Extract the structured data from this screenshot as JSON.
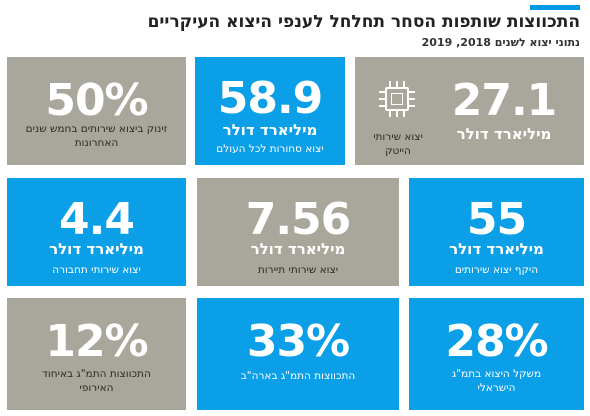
{
  "header": {
    "title": "התכווצות שותפות הסחר תחלחל לענפי היצוא העיקריים",
    "subtitle": "נתוני יצוא לשנים 2018, 2019"
  },
  "tiles": [
    {
      "number": "27.1",
      "unit": "מיליארד דולר",
      "desc": "",
      "side_label": "יצוא שירותי הייטק",
      "icon": "microchip-icon",
      "color": "gray"
    },
    {
      "number": "58.9",
      "unit": "מיליארד דולר",
      "desc": "יצוא סחורות לכל העולם",
      "color": "blue"
    },
    {
      "number": "50%",
      "unit": "",
      "desc": "זינוק ביצוא שירותים בחמש שנים האחרונות",
      "color": "gray"
    },
    {
      "number": "55",
      "unit": "מיליארד דולר",
      "desc": "היקף יצוא שירותים",
      "color": "blue"
    },
    {
      "number": "7.56",
      "unit": "מיליארד דולר",
      "desc": "יצוא שירותי תיירות",
      "color": "gray"
    },
    {
      "number": "4.4",
      "unit": "מיליארד דולר",
      "desc": "יצוא שירותי תחבורה",
      "color": "blue"
    },
    {
      "number": "28%",
      "unit": "",
      "desc": "משקל היצוא בתמ\"ג הישראלי",
      "color": "blue"
    },
    {
      "number": "33%",
      "unit": "",
      "desc": "התכווצות התמ\"ג בארה\"ב",
      "color": "blue"
    },
    {
      "number": "12%",
      "unit": "",
      "desc": "התכווצות התמ\"ג באיחוד האירופי",
      "color": "gray"
    }
  ],
  "colors": {
    "blue": "#0a9fe6",
    "gray": "#a9a69b",
    "accent": "#0099e5"
  }
}
